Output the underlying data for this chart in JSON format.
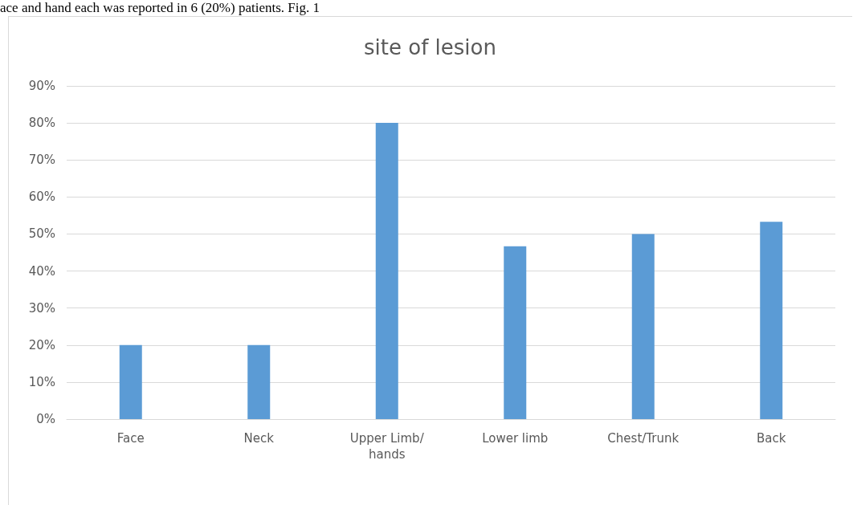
{
  "chart_data": {
    "type": "bar",
    "title": "site of lesion",
    "annotations": [
      "ace and hand each was reported in 6 (20%) patients. Fig. 1"
    ],
    "categories": [
      "Face",
      "Neck",
      "Upper Limb/hands",
      "Lower limb",
      "Chest/Trunk",
      "Back"
    ],
    "values": [
      20,
      20,
      80,
      46.7,
      50,
      53.3
    ],
    "color": "#5b9bd5",
    "ylim": [
      0,
      90
    ],
    "yticks": [
      {
        "value": 0,
        "label": "0%"
      },
      {
        "value": 10,
        "label": "10%"
      },
      {
        "value": 20,
        "label": "20%"
      },
      {
        "value": 30,
        "label": "30%"
      },
      {
        "value": 40,
        "label": "40%"
      },
      {
        "value": 50,
        "label": "50%"
      },
      {
        "value": 60,
        "label": "60%"
      },
      {
        "value": 70,
        "label": "70%"
      },
      {
        "value": 80,
        "label": "80%"
      },
      {
        "value": 90,
        "label": "90%"
      }
    ],
    "grid": "y"
  }
}
